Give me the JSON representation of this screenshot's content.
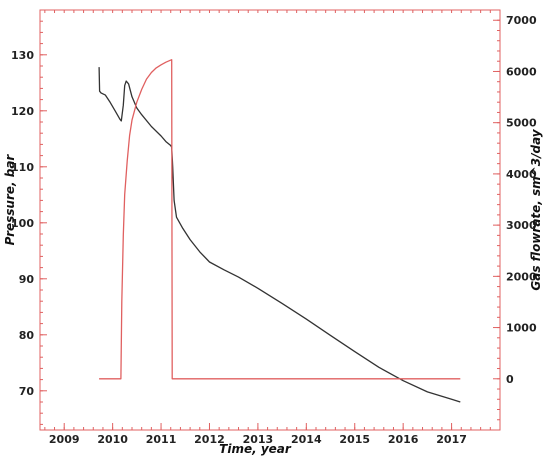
{
  "chart_data": {
    "type": "line",
    "title": "",
    "xlabel": "Time, year",
    "ylabel_left": "Pressure, bar",
    "ylabel_right": "Gas flowrate, sm^3/day",
    "xlim": [
      2008.5,
      2018.0
    ],
    "ylim_left": [
      63.0,
      138.0
    ],
    "ylim_right": [
      -1000,
      7200
    ],
    "xticks": [
      2009,
      2010,
      2011,
      2012,
      2013,
      2014,
      2015,
      2016,
      2017
    ],
    "yticks_left": [
      70,
      80,
      90,
      100,
      110,
      120,
      130
    ],
    "yticks_right": [
      0,
      1000,
      2000,
      3000,
      4000,
      5000,
      6000,
      7000
    ],
    "grid": false,
    "legend": "none",
    "series": [
      {
        "axis": "left",
        "color": "#333333",
        "points": [
          [
            2009.72,
            127.8
          ],
          [
            2009.73,
            123.5
          ],
          [
            2009.76,
            123.2
          ],
          [
            2009.85,
            122.8
          ],
          [
            2009.95,
            121.5
          ],
          [
            2010.05,
            120.0
          ],
          [
            2010.15,
            118.5
          ],
          [
            2010.18,
            118.2
          ],
          [
            2010.22,
            121.0
          ],
          [
            2010.25,
            124.5
          ],
          [
            2010.28,
            125.3
          ],
          [
            2010.33,
            124.8
          ],
          [
            2010.4,
            122.5
          ],
          [
            2010.5,
            120.5
          ],
          [
            2010.6,
            119.3
          ],
          [
            2010.8,
            117.2
          ],
          [
            2011.0,
            115.5
          ],
          [
            2011.1,
            114.5
          ],
          [
            2011.2,
            113.8
          ],
          [
            2011.22,
            113.5
          ],
          [
            2011.24,
            110.0
          ],
          [
            2011.27,
            104.0
          ],
          [
            2011.32,
            101.0
          ],
          [
            2011.45,
            99.0
          ],
          [
            2011.6,
            97.0
          ],
          [
            2011.8,
            94.8
          ],
          [
            2012.0,
            93.0
          ],
          [
            2012.3,
            91.6
          ],
          [
            2012.6,
            90.3
          ],
          [
            2013.0,
            88.3
          ],
          [
            2013.5,
            85.6
          ],
          [
            2014.0,
            82.8
          ],
          [
            2014.5,
            79.9
          ],
          [
            2015.0,
            77.0
          ],
          [
            2015.5,
            74.2
          ],
          [
            2016.0,
            71.8
          ],
          [
            2016.5,
            69.8
          ],
          [
            2017.0,
            68.5
          ],
          [
            2017.18,
            68.0
          ]
        ]
      },
      {
        "axis": "right",
        "color": "#e06060",
        "points": [
          [
            2009.72,
            0
          ],
          [
            2010.17,
            0
          ],
          [
            2010.19,
            1500
          ],
          [
            2010.22,
            2800
          ],
          [
            2010.25,
            3600
          ],
          [
            2010.3,
            4250
          ],
          [
            2010.35,
            4750
          ],
          [
            2010.4,
            5050
          ],
          [
            2010.5,
            5400
          ],
          [
            2010.6,
            5650
          ],
          [
            2010.7,
            5850
          ],
          [
            2010.8,
            5980
          ],
          [
            2010.9,
            6070
          ],
          [
            2011.0,
            6130
          ],
          [
            2011.1,
            6180
          ],
          [
            2011.22,
            6230
          ],
          [
            2011.23,
            0
          ],
          [
            2017.18,
            0
          ]
        ]
      }
    ]
  }
}
